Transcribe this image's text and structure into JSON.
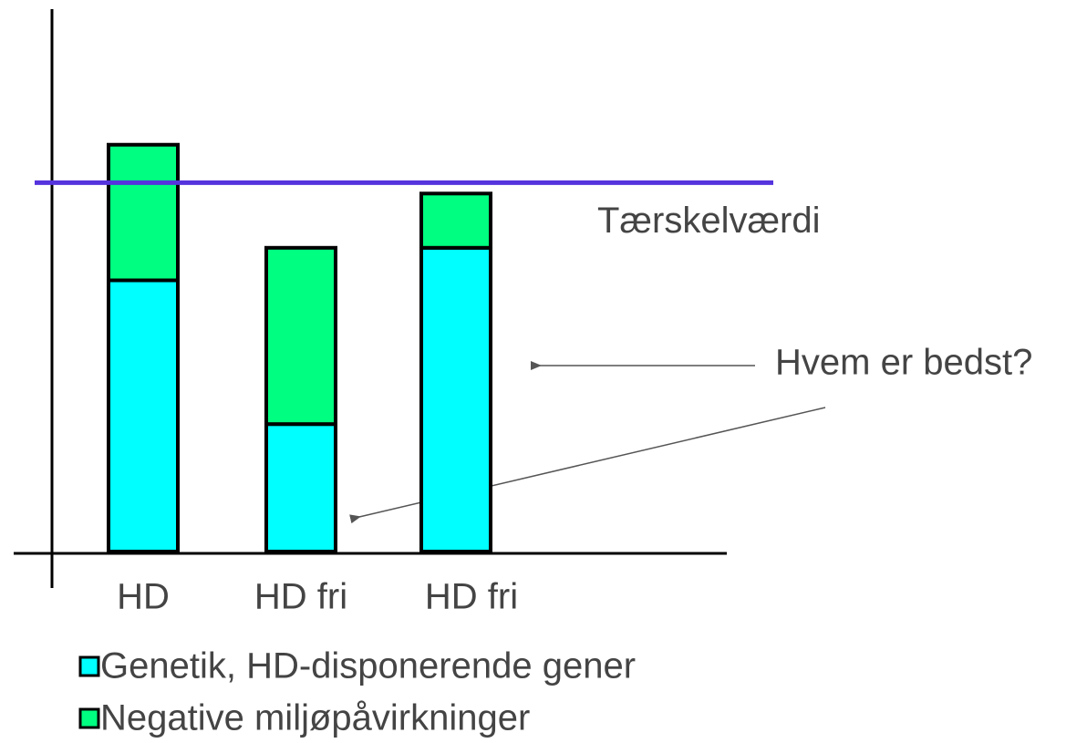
{
  "chart_data": {
    "type": "stacked_bar",
    "categories": [
      "HD",
      "HD fri",
      "HD fri"
    ],
    "series": [
      {
        "name": "Genetik, HD-disponerende gener",
        "color": "#00ffff",
        "values": [
          50,
          23.5,
          56
        ]
      },
      {
        "name": "Negative miljøpåvirkninger",
        "color": "#00ff80",
        "values": [
          25,
          32.5,
          10
        ]
      }
    ],
    "ylim": [
      0,
      100
    ],
    "threshold": {
      "value": 68,
      "label": "Tærskelværdi",
      "color": "#5533dd"
    },
    "annotation": "Hvem er bedst?"
  }
}
